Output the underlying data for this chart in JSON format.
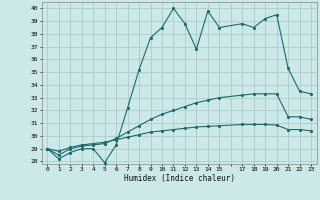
{
  "xlabel": "Humidex (Indice chaleur)",
  "bg_color": "#cce8e8",
  "grid_color": "#aacccc",
  "line_color": "#1a6b6b",
  "xlim": [
    -0.5,
    23.5
  ],
  "ylim": [
    27.8,
    40.5
  ],
  "yticks": [
    28,
    29,
    30,
    31,
    32,
    33,
    34,
    35,
    36,
    37,
    38,
    39,
    40
  ],
  "line1_x": [
    0,
    1,
    2,
    3,
    4,
    5,
    6,
    7,
    8,
    9,
    10,
    11,
    12,
    13,
    14,
    15,
    17,
    18,
    19,
    20,
    21,
    22,
    23
  ],
  "line1_y": [
    29.0,
    28.2,
    28.7,
    29.0,
    29.0,
    27.9,
    29.3,
    32.2,
    35.2,
    37.7,
    38.5,
    40.0,
    38.8,
    36.8,
    39.8,
    38.5,
    38.8,
    38.5,
    39.2,
    39.5,
    35.3,
    33.5,
    33.3
  ],
  "line2_x": [
    0,
    1,
    2,
    3,
    4,
    5,
    6,
    7,
    8,
    9,
    10,
    11,
    12,
    13,
    14,
    15,
    17,
    18,
    19,
    20,
    21,
    22,
    23
  ],
  "line2_y": [
    29.0,
    28.5,
    29.0,
    29.2,
    29.3,
    29.4,
    29.8,
    30.3,
    30.8,
    31.3,
    31.7,
    32.0,
    32.3,
    32.6,
    32.8,
    33.0,
    33.2,
    33.3,
    33.3,
    33.3,
    31.5,
    31.5,
    31.3
  ],
  "line3_x": [
    0,
    1,
    2,
    3,
    4,
    5,
    6,
    7,
    8,
    9,
    10,
    11,
    12,
    13,
    14,
    15,
    17,
    18,
    19,
    20,
    21,
    22,
    23
  ],
  "line3_y": [
    29.0,
    28.8,
    29.1,
    29.3,
    29.4,
    29.5,
    29.7,
    29.9,
    30.1,
    30.3,
    30.4,
    30.5,
    30.6,
    30.7,
    30.75,
    30.8,
    30.9,
    30.9,
    30.9,
    30.85,
    30.5,
    30.5,
    30.4
  ]
}
